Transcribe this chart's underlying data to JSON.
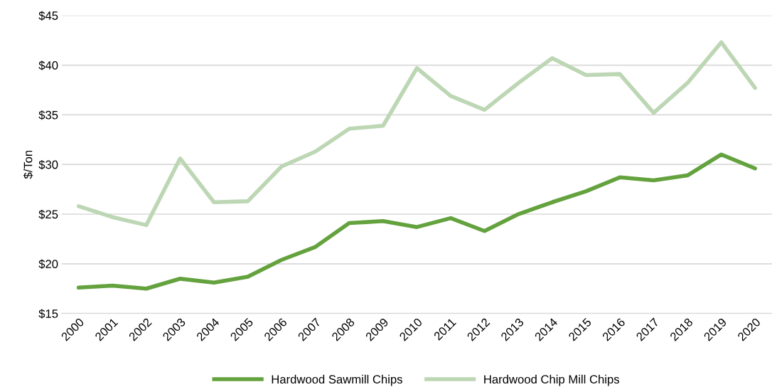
{
  "chart_data": {
    "type": "line",
    "ylabel": "$/Ton",
    "categories": [
      "2000",
      "2001",
      "2002",
      "2003",
      "2004",
      "2005",
      "2006",
      "2007",
      "2008",
      "2009",
      "2010",
      "2011",
      "2012",
      "2013",
      "2014",
      "2015",
      "2016",
      "2017",
      "2018",
      "2019",
      "2020"
    ],
    "series": [
      {
        "name": "Hardwood Sawmill Chips",
        "color": "#64a23e",
        "values": [
          17.6,
          17.8,
          17.5,
          18.5,
          18.1,
          18.7,
          20.4,
          21.7,
          24.1,
          24.3,
          23.7,
          24.6,
          23.3,
          25.0,
          26.2,
          27.3,
          28.7,
          28.4,
          28.9,
          31.0,
          29.6
        ]
      },
      {
        "name": "Hardwood Chip Mill Chips",
        "color": "#bdd7b5",
        "values": [
          25.8,
          24.7,
          23.9,
          30.6,
          26.2,
          26.3,
          29.8,
          31.3,
          33.6,
          33.9,
          39.7,
          36.9,
          35.5,
          38.2,
          40.7,
          39.0,
          39.1,
          35.2,
          38.2,
          42.3,
          37.7
        ]
      }
    ],
    "ylim": [
      15,
      45
    ],
    "yticks": [
      {
        "value": 15,
        "label": "$15"
      },
      {
        "value": 20,
        "label": "$20"
      },
      {
        "value": 25,
        "label": "$25"
      },
      {
        "value": 30,
        "label": "$30"
      },
      {
        "value": 35,
        "label": "$35"
      },
      {
        "value": 40,
        "label": "$40"
      },
      {
        "value": 45,
        "label": "$45"
      }
    ],
    "grid": "y",
    "legend": "bottom",
    "marker": "none",
    "line_style": "solid"
  }
}
